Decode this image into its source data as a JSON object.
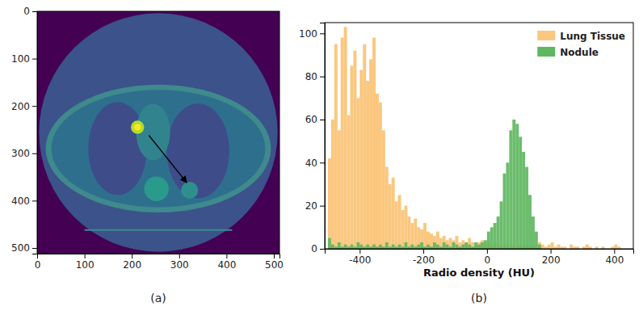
{
  "chart_data": [
    {
      "type": "image",
      "caption": "(a)",
      "xlim": [
        0,
        512
      ],
      "ylim": [
        512,
        0
      ],
      "xticks": [
        0,
        100,
        200,
        300,
        400,
        500
      ],
      "yticks": [
        0,
        100,
        200,
        300,
        400,
        500
      ]
    },
    {
      "type": "histogram",
      "caption": "(b)",
      "x_label": "Radio density (HU)",
      "xlim": [
        -510,
        460
      ],
      "ylim": [
        0,
        105
      ],
      "xticks": [
        -400,
        -200,
        0,
        200,
        400
      ],
      "yticks": [
        0,
        20,
        40,
        60,
        80,
        100
      ],
      "legend": "upper right",
      "bins": [
        -500,
        -490,
        -480,
        -470,
        -460,
        -450,
        -440,
        -430,
        -420,
        -410,
        -400,
        -390,
        -380,
        -370,
        -360,
        -350,
        -340,
        -330,
        -320,
        -310,
        -300,
        -290,
        -280,
        -270,
        -260,
        -250,
        -240,
        -230,
        -220,
        -210,
        -200,
        -190,
        -180,
        -170,
        -160,
        -150,
        -140,
        -130,
        -120,
        -110,
        -100,
        -90,
        -80,
        -70,
        -60,
        -50,
        -40,
        -30,
        -20,
        -10,
        0,
        10,
        20,
        30,
        40,
        50,
        60,
        70,
        80,
        90,
        100,
        110,
        120,
        130,
        140,
        150,
        160,
        170,
        180,
        190,
        200,
        210,
        220,
        230,
        240,
        250,
        260,
        270,
        280,
        290,
        300,
        310,
        320,
        330,
        340,
        350,
        360,
        370,
        380,
        390,
        400,
        410,
        420
      ],
      "series": [
        {
          "name": "Lung Tissue",
          "color": "#fbc77f",
          "values": [
            42,
            60,
            95,
            55,
            98,
            103,
            62,
            85,
            92,
            70,
            83,
            95,
            78,
            88,
            98,
            72,
            68,
            55,
            38,
            30,
            33,
            22,
            25,
            18,
            20,
            15,
            12,
            14,
            10,
            9,
            12,
            8,
            7,
            6,
            8,
            5,
            6,
            4,
            5,
            4,
            6,
            3,
            4,
            3,
            5,
            3,
            2,
            3,
            4,
            2,
            3,
            2,
            3,
            2,
            1,
            2,
            2,
            1,
            2,
            1,
            2,
            1,
            2,
            1,
            2,
            1,
            3,
            2,
            1,
            2,
            3,
            1,
            2,
            1,
            1,
            0,
            2,
            1,
            1,
            0,
            1,
            2,
            1,
            0,
            1,
            0,
            1,
            0,
            0,
            1,
            2,
            1
          ]
        },
        {
          "name": "Nodule",
          "color": "#5fb761",
          "values": [
            5,
            2,
            1,
            3,
            1,
            2,
            1,
            2,
            1,
            3,
            2,
            1,
            2,
            1,
            2,
            1,
            2,
            1,
            3,
            1,
            2,
            1,
            2,
            1,
            3,
            1,
            2,
            1,
            2,
            3,
            1,
            2,
            1,
            3,
            2,
            1,
            3,
            2,
            1,
            3,
            2,
            1,
            2,
            3,
            2,
            1,
            3,
            2,
            3,
            4,
            8,
            10,
            12,
            15,
            22,
            35,
            40,
            55,
            60,
            58,
            52,
            45,
            38,
            25,
            15,
            8,
            2,
            0,
            0,
            0,
            0,
            0,
            0,
            0,
            0,
            0,
            0,
            0,
            0,
            0,
            0,
            0,
            0,
            0,
            0,
            0,
            0,
            0,
            0,
            0,
            0,
            0
          ]
        }
      ]
    }
  ]
}
